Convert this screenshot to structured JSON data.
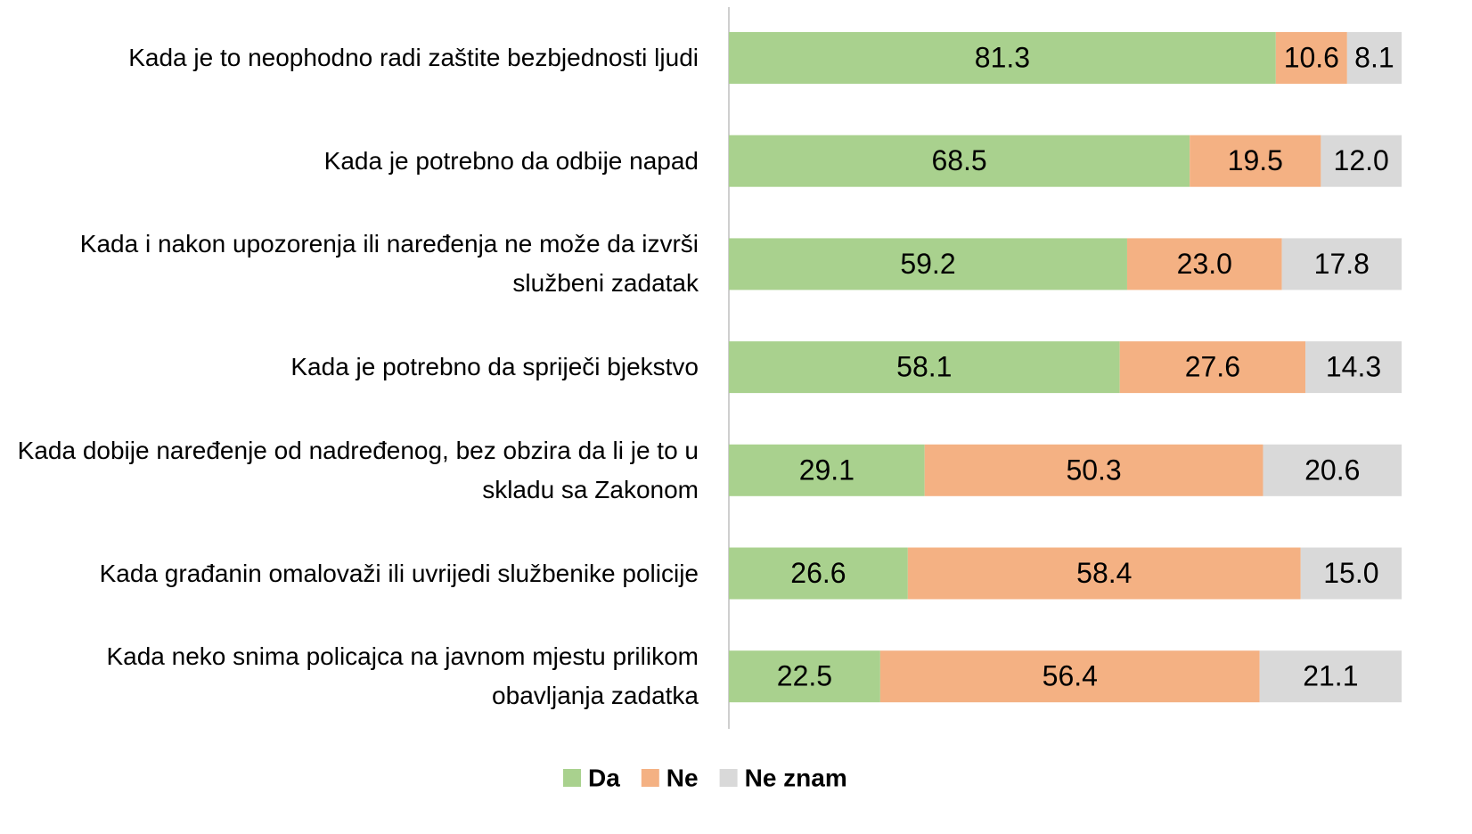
{
  "chart_data": {
    "type": "stacked-bar-horizontal",
    "categories": [
      "Kada je to neophodno radi zaštite bezbjednosti ljudi",
      "Kada je potrebno da odbije napad",
      "Kada i nakon upozorenja ili naređenja ne može da izvrši službeni zadatak",
      "Kada je potrebno da spriječi bjekstvo",
      "Kada dobije naređenje od nadređenog, bez obzira da li je to u skladu sa Zakonom",
      "Kada građanin omalovaži ili uvrijedi službenike policije",
      "Kada neko snima policajca na javnom mjestu prilikom obavljanja zadatka"
    ],
    "series": [
      {
        "name": "Da",
        "color": "#a9d18e",
        "values": [
          81.3,
          68.5,
          59.2,
          58.1,
          29.1,
          26.6,
          22.5
        ],
        "value_labels": [
          "81.3",
          "68.5",
          "59.2",
          "58.1",
          "29.1",
          "26.6",
          "22.5"
        ]
      },
      {
        "name": "Ne",
        "color": "#f4b183",
        "values": [
          10.6,
          19.5,
          23.0,
          27.6,
          50.3,
          58.4,
          56.4
        ],
        "value_labels": [
          "10.6",
          "19.5",
          "23.0",
          "27.6",
          "50.3",
          "58.4",
          "56.4"
        ]
      },
      {
        "name": "Ne znam",
        "color": "#d9d9d9",
        "values": [
          8.1,
          12.0,
          17.8,
          14.3,
          20.6,
          15.0,
          21.1
        ],
        "value_labels": [
          "8.1",
          "12.0",
          "17.8",
          "14.3",
          "20.6",
          "15.0",
          "21.1"
        ]
      }
    ],
    "xlim": [
      0,
      100
    ],
    "legend": "bottom"
  }
}
